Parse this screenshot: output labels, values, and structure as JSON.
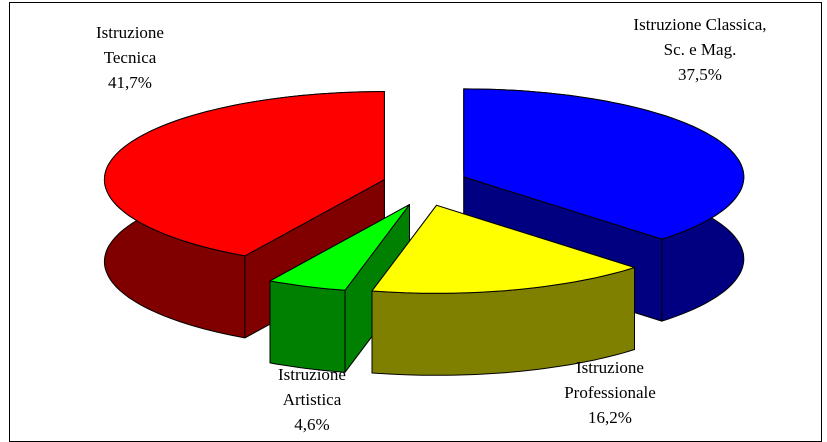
{
  "chart_data": {
    "type": "pie3d",
    "categories": [
      "Istruzione Classica, Sc. e Mag.",
      "Istruzione Professionale",
      "Istruzione Artistica",
      "Istruzione Tecnica"
    ],
    "values": [
      37.5,
      16.2,
      4.6,
      41.7
    ],
    "value_labels": [
      "37,5%",
      "16,2%",
      "4,6%",
      "41,7%"
    ],
    "colors": [
      "#0000ff",
      "#ffff00",
      "#00ff00",
      "#ff0000"
    ]
  }
}
